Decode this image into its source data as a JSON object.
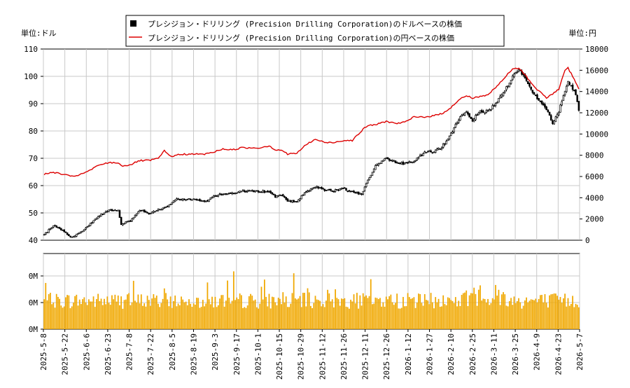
{
  "chart_data": {
    "type": "candlestick+line+bar",
    "legend": {
      "placement": "top-center",
      "entries": [
        {
          "label": "プレシジョン・ドリリング (Precision Drilling Corporation)のドルベースの株価",
          "marker": "black-square"
        },
        {
          "label": "プレシジョン・ドリリング (Precision Drilling Corporation)の円ベースの株価",
          "marker": "red-line"
        }
      ]
    },
    "left_unit_label": "単位:ドル",
    "right_unit_label": "単位:円",
    "usd_axis": {
      "min": 40,
      "max": 110,
      "ticks": [
        40,
        50,
        60,
        70,
        80,
        90,
        100,
        110
      ]
    },
    "jpy_axis": {
      "min": 0,
      "max": 18000,
      "ticks": [
        0,
        2000,
        4000,
        6000,
        8000,
        10000,
        12000,
        14000,
        16000,
        18000
      ]
    },
    "volume_axis": {
      "tick_labels": [
        "0M",
        "0M",
        "0M"
      ]
    },
    "x_tick_labels": [
      "2025-5-8",
      "2025-5-22",
      "2025-6-6",
      "2025-6-23",
      "2025-7-8",
      "2025-7-22",
      "2025-8-5",
      "2025-8-19",
      "2025-9-3",
      "2025-9-17",
      "2025-10-1",
      "2025-10-15",
      "2025-10-29",
      "2025-11-12",
      "2025-11-26",
      "2025-12-11",
      "2025-12-26",
      "2026-1-12",
      "2026-1-27",
      "2026-2-10",
      "2026-2-25",
      "2026-3-11",
      "2026-3-25",
      "2026-4-9",
      "2026-4-23",
      "2026-5-7"
    ],
    "usd_anchors": [
      [
        0,
        42.0
      ],
      [
        6,
        45.5
      ],
      [
        12,
        43.5
      ],
      [
        18,
        41.0
      ],
      [
        24,
        43.0
      ],
      [
        30,
        46.0
      ],
      [
        36,
        49.0
      ],
      [
        42,
        51.0
      ],
      [
        48,
        51.0
      ],
      [
        50,
        46.0
      ],
      [
        56,
        47.0
      ],
      [
        62,
        51.0
      ],
      [
        68,
        50.0
      ],
      [
        74,
        51.0
      ],
      [
        80,
        52.5
      ],
      [
        86,
        55.0
      ],
      [
        92,
        55.0
      ],
      [
        98,
        55.0
      ],
      [
        104,
        54.0
      ],
      [
        110,
        56.0
      ],
      [
        116,
        57.0
      ],
      [
        122,
        57.0
      ],
      [
        128,
        58.0
      ],
      [
        134,
        58.0
      ],
      [
        140,
        58.0
      ],
      [
        146,
        57.5
      ],
      [
        150,
        56.0
      ],
      [
        154,
        56.5
      ],
      [
        158,
        54.5
      ],
      [
        164,
        54.0
      ],
      [
        170,
        58.0
      ],
      [
        176,
        59.5
      ],
      [
        182,
        58.5
      ],
      [
        188,
        58.0
      ],
      [
        194,
        59.0
      ],
      [
        200,
        57.5
      ],
      [
        206,
        57.0
      ],
      [
        210,
        62.0
      ],
      [
        216,
        68.0
      ],
      [
        222,
        70.0
      ],
      [
        228,
        68.5
      ],
      [
        234,
        68.0
      ],
      [
        240,
        69.0
      ],
      [
        246,
        72.0
      ],
      [
        252,
        72.5
      ],
      [
        258,
        74.0
      ],
      [
        264,
        79.0
      ],
      [
        270,
        85.0
      ],
      [
        274,
        87.0
      ],
      [
        278,
        84.0
      ],
      [
        282,
        87.0
      ],
      [
        288,
        87.0
      ],
      [
        294,
        91.0
      ],
      [
        300,
        96.0
      ],
      [
        304,
        100.0
      ],
      [
        308,
        102.5
      ],
      [
        312,
        100.0
      ],
      [
        316,
        95.0
      ],
      [
        320,
        92.0
      ],
      [
        326,
        88.0
      ],
      [
        330,
        83.0
      ],
      [
        334,
        87.0
      ],
      [
        338,
        95.0
      ],
      [
        340,
        98.0
      ],
      [
        344,
        95.0
      ],
      [
        347,
        88.0
      ]
    ],
    "jpy_anchors": [
      [
        0,
        6200
      ],
      [
        6,
        6400
      ],
      [
        12,
        6200
      ],
      [
        18,
        6000
      ],
      [
        24,
        6200
      ],
      [
        30,
        6600
      ],
      [
        36,
        7100
      ],
      [
        42,
        7300
      ],
      [
        48,
        7300
      ],
      [
        50,
        7000
      ],
      [
        56,
        7100
      ],
      [
        62,
        7500
      ],
      [
        68,
        7500
      ],
      [
        74,
        7700
      ],
      [
        78,
        8400
      ],
      [
        82,
        7900
      ],
      [
        90,
        8100
      ],
      [
        98,
        8100
      ],
      [
        104,
        8100
      ],
      [
        110,
        8300
      ],
      [
        116,
        8600
      ],
      [
        122,
        8500
      ],
      [
        128,
        8700
      ],
      [
        134,
        8700
      ],
      [
        140,
        8700
      ],
      [
        146,
        8900
      ],
      [
        150,
        8500
      ],
      [
        154,
        8500
      ],
      [
        158,
        8100
      ],
      [
        164,
        8200
      ],
      [
        170,
        9000
      ],
      [
        176,
        9500
      ],
      [
        182,
        9200
      ],
      [
        188,
        9200
      ],
      [
        194,
        9400
      ],
      [
        200,
        9400
      ],
      [
        206,
        10300
      ],
      [
        210,
        10800
      ],
      [
        216,
        10900
      ],
      [
        222,
        11200
      ],
      [
        228,
        11000
      ],
      [
        234,
        11100
      ],
      [
        240,
        11600
      ],
      [
        246,
        11600
      ],
      [
        252,
        11700
      ],
      [
        258,
        11900
      ],
      [
        264,
        12500
      ],
      [
        270,
        13300
      ],
      [
        274,
        13600
      ],
      [
        278,
        13400
      ],
      [
        282,
        13500
      ],
      [
        288,
        13700
      ],
      [
        294,
        14500
      ],
      [
        300,
        15500
      ],
      [
        304,
        16100
      ],
      [
        308,
        16200
      ],
      [
        312,
        15600
      ],
      [
        316,
        14800
      ],
      [
        320,
        14200
      ],
      [
        326,
        13400
      ],
      [
        330,
        13800
      ],
      [
        334,
        14200
      ],
      [
        338,
        16000
      ],
      [
        340,
        16200
      ],
      [
        344,
        15200
      ],
      [
        347,
        14200
      ]
    ],
    "volume_pattern": "daily bars, orange, relative heights shown only"
  }
}
